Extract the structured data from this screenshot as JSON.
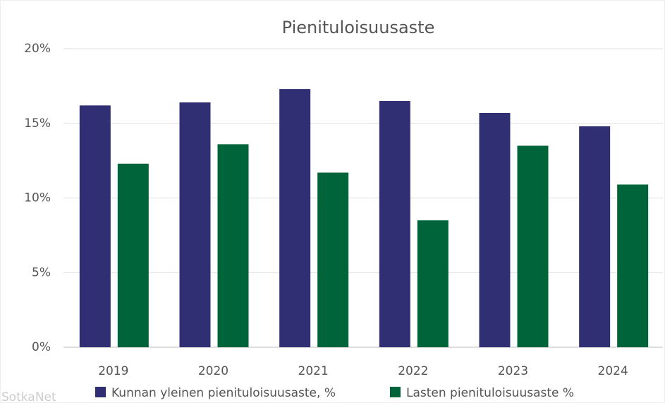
{
  "chart_data": {
    "type": "bar",
    "title": "Pienituloisuusaste",
    "categories": [
      "2019",
      "2020",
      "2021",
      "2022",
      "2023",
      "2024"
    ],
    "series": [
      {
        "name": "Kunnan yleinen pienituloisuusaste, %",
        "color": "#312f73",
        "values": [
          16.2,
          16.4,
          17.3,
          16.5,
          15.7,
          14.8
        ]
      },
      {
        "name": "Lasten pienituloisuusaste %",
        "color": "#00643a",
        "values": [
          12.3,
          13.6,
          11.7,
          8.5,
          13.5,
          10.9
        ]
      }
    ],
    "ylim": [
      0,
      20
    ],
    "yticks": [
      {
        "value": 0,
        "label": "0%"
      },
      {
        "value": 5,
        "label": "5%"
      },
      {
        "value": 10,
        "label": "10%"
      },
      {
        "value": 15,
        "label": "15%"
      },
      {
        "value": 20,
        "label": "20%"
      }
    ],
    "grid": true,
    "legend": "bottom",
    "credit": "SotkaNet"
  }
}
